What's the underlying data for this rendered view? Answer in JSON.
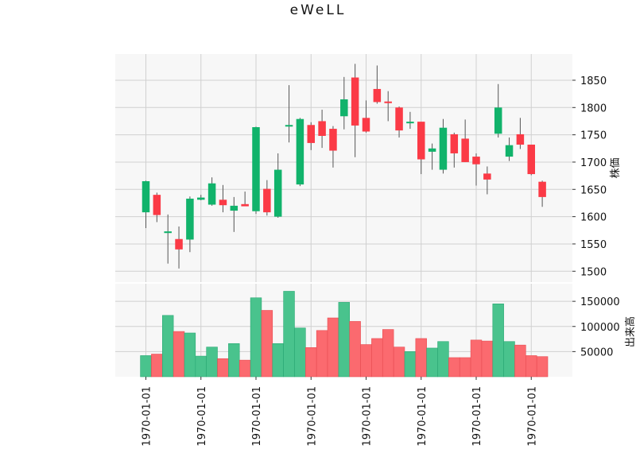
{
  "chart_data": {
    "type": "candlestick",
    "title": "eWeLL",
    "colors": {
      "up": "#11b36b",
      "down": "#fb3a46",
      "volume_up": "#49c38d",
      "volume_down": "#fb6a6f",
      "wick": "#555555",
      "grid": "#d0d0d0",
      "panel_bg": "#f7f7f7"
    },
    "grid": true,
    "price_panel": {
      "ylabel": "株価",
      "ylim": [
        1480,
        1898
      ],
      "ticks": [
        1500,
        1550,
        1600,
        1650,
        1700,
        1750,
        1800,
        1850
      ]
    },
    "volume_panel": {
      "ylabel": "出来高",
      "ylim": [
        0,
        185000
      ],
      "ticks": [
        50000,
        100000,
        150000
      ]
    },
    "x_tick_labels": [
      "1970-01-01",
      "1970-01-01",
      "1970-01-01",
      "1970-01-01",
      "1970-01-01",
      "1970-01-01",
      "1970-01-01",
      "1970-01-01"
    ],
    "x_tick_indices": [
      0,
      5,
      10,
      15,
      20,
      25,
      30,
      35
    ],
    "ohlc": [
      {
        "open": 1608,
        "high": 1666,
        "low": 1579,
        "close": 1665,
        "volume": 42000
      },
      {
        "open": 1640,
        "high": 1644,
        "low": 1590,
        "close": 1603,
        "volume": 45000
      },
      {
        "open": 1570,
        "high": 1604,
        "low": 1514,
        "close": 1573,
        "volume": 122000
      },
      {
        "open": 1559,
        "high": 1582,
        "low": 1505,
        "close": 1540,
        "volume": 90000
      },
      {
        "open": 1558,
        "high": 1637,
        "low": 1535,
        "close": 1633,
        "volume": 87000
      },
      {
        "open": 1631,
        "high": 1640,
        "low": 1630,
        "close": 1635,
        "volume": 41000
      },
      {
        "open": 1622,
        "high": 1672,
        "low": 1620,
        "close": 1661,
        "volume": 59000
      },
      {
        "open": 1631,
        "high": 1658,
        "low": 1608,
        "close": 1621,
        "volume": 36000
      },
      {
        "open": 1611,
        "high": 1636,
        "low": 1572,
        "close": 1620,
        "volume": 66000
      },
      {
        "open": 1623,
        "high": 1646,
        "low": 1620,
        "close": 1619,
        "volume": 33000
      },
      {
        "open": 1610,
        "high": 1765,
        "low": 1605,
        "close": 1764,
        "volume": 157000
      },
      {
        "open": 1651,
        "high": 1667,
        "low": 1602,
        "close": 1608,
        "volume": 132000
      },
      {
        "open": 1600,
        "high": 1716,
        "low": 1598,
        "close": 1686,
        "volume": 66000
      },
      {
        "open": 1766,
        "high": 1841,
        "low": 1736,
        "close": 1768,
        "volume": 170000
      },
      {
        "open": 1659,
        "high": 1781,
        "low": 1656,
        "close": 1779,
        "volume": 97000
      },
      {
        "open": 1768,
        "high": 1773,
        "low": 1722,
        "close": 1735,
        "volume": 58000
      },
      {
        "open": 1775,
        "high": 1796,
        "low": 1726,
        "close": 1748,
        "volume": 92000
      },
      {
        "open": 1761,
        "high": 1766,
        "low": 1690,
        "close": 1721,
        "volume": 117000
      },
      {
        "open": 1784,
        "high": 1856,
        "low": 1760,
        "close": 1815,
        "volume": 148000
      },
      {
        "open": 1855,
        "high": 1880,
        "low": 1709,
        "close": 1767,
        "volume": 110000
      },
      {
        "open": 1781,
        "high": 1813,
        "low": 1754,
        "close": 1756,
        "volume": 64000
      },
      {
        "open": 1834,
        "high": 1877,
        "low": 1807,
        "close": 1810,
        "volume": 76000
      },
      {
        "open": 1811,
        "high": 1830,
        "low": 1775,
        "close": 1809,
        "volume": 94000
      },
      {
        "open": 1800,
        "high": 1802,
        "low": 1745,
        "close": 1758,
        "volume": 59000
      },
      {
        "open": 1774,
        "high": 1792,
        "low": 1761,
        "close": 1774,
        "volume": 50000
      },
      {
        "open": 1774,
        "high": 1774,
        "low": 1678,
        "close": 1705,
        "volume": 76000
      },
      {
        "open": 1719,
        "high": 1734,
        "low": 1686,
        "close": 1725,
        "volume": 57000
      },
      {
        "open": 1686,
        "high": 1779,
        "low": 1679,
        "close": 1763,
        "volume": 70000
      },
      {
        "open": 1751,
        "high": 1754,
        "low": 1690,
        "close": 1716,
        "volume": 38000
      },
      {
        "open": 1743,
        "high": 1778,
        "low": 1700,
        "close": 1700,
        "volume": 38000
      },
      {
        "open": 1710,
        "high": 1716,
        "low": 1657,
        "close": 1696,
        "volume": 73000
      },
      {
        "open": 1679,
        "high": 1692,
        "low": 1641,
        "close": 1668,
        "volume": 71000
      },
      {
        "open": 1752,
        "high": 1843,
        "low": 1745,
        "close": 1800,
        "volume": 145000
      },
      {
        "open": 1710,
        "high": 1745,
        "low": 1702,
        "close": 1731,
        "volume": 70000
      },
      {
        "open": 1751,
        "high": 1781,
        "low": 1724,
        "close": 1732,
        "volume": 63000
      },
      {
        "open": 1732,
        "high": 1732,
        "low": 1676,
        "close": 1678,
        "volume": 42000
      },
      {
        "open": 1664,
        "high": 1666,
        "low": 1618,
        "close": 1636,
        "volume": 40000
      }
    ]
  }
}
